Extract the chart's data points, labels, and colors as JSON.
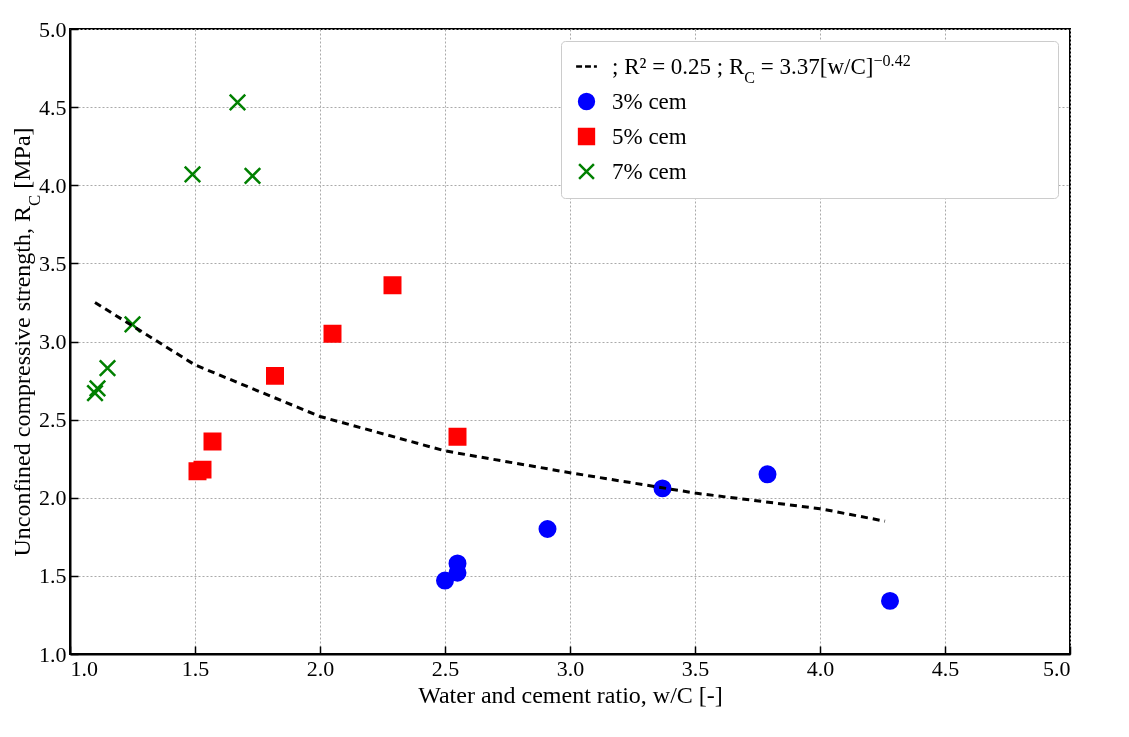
{
  "chart_data": {
    "type": "scatter",
    "xlabel": "Water and cement ratio, w/C [-]",
    "ylabel": "Unconfined compressive strength, R$_{C}$ [MPa]",
    "xlim": [
      1.0,
      5.0
    ],
    "xticks": [
      {
        "value": 1.0,
        "label": "1.0"
      },
      {
        "value": 1.5,
        "label": "1.5"
      },
      {
        "value": 2.0,
        "label": "2.0"
      },
      {
        "value": 2.5,
        "label": "2.5"
      },
      {
        "value": 3.0,
        "label": "3.0"
      },
      {
        "value": 3.5,
        "label": "3.5"
      },
      {
        "value": 4.0,
        "label": "4.0"
      },
      {
        "value": 4.5,
        "label": "4.5"
      },
      {
        "value": 5.0,
        "label": "5.0"
      }
    ],
    "ylim": [
      1.0,
      5.0
    ],
    "yticks": [
      {
        "value": 1.0,
        "label": "1.0"
      },
      {
        "value": 1.5,
        "label": "1.5"
      },
      {
        "value": 2.0,
        "label": "2.0"
      },
      {
        "value": 2.5,
        "label": "2.5"
      },
      {
        "value": 3.0,
        "label": "3.0"
      },
      {
        "value": 3.5,
        "label": "3.5"
      },
      {
        "value": 4.0,
        "label": "4.0"
      },
      {
        "value": 4.5,
        "label": "4.5"
      },
      {
        "value": 5.0,
        "label": "5.0"
      }
    ],
    "grid": true,
    "legend": "top right",
    "series": [
      {
        "name": "; R² = 0.25 ; R$_{C}$ = 3.37[w/C]$^{−0.42}$",
        "type": "line",
        "line_style": "dashed",
        "color": "#000000",
        "x": [
          1.1,
          1.5,
          2.0,
          2.5,
          3.0,
          3.5,
          4.0,
          4.26
        ],
        "values": [
          3.25,
          2.85,
          2.52,
          2.3,
          2.16,
          2.03,
          1.93,
          1.85
        ]
      },
      {
        "name": "3% cem",
        "marker": "circle",
        "color": "#0000ff",
        "x": [
          2.5,
          2.55,
          2.55,
          2.91,
          3.37,
          3.79,
          4.28
        ],
        "values": [
          1.47,
          1.58,
          1.52,
          1.8,
          2.06,
          2.15,
          1.34
        ]
      },
      {
        "name": "5% cem",
        "marker": "square",
        "color": "#ff0000",
        "x": [
          1.51,
          1.53,
          1.57,
          1.82,
          2.05,
          2.29,
          2.55
        ],
        "values": [
          2.17,
          2.18,
          2.36,
          2.78,
          3.05,
          3.36,
          2.39
        ]
      },
      {
        "name": "7% cem",
        "marker": "cross",
        "color": "#008000",
        "x": [
          1.1,
          1.11,
          1.15,
          1.25,
          1.49,
          1.67,
          1.73
        ],
        "values": [
          2.67,
          2.7,
          2.83,
          3.11,
          4.07,
          4.53,
          4.06
        ]
      }
    ]
  }
}
